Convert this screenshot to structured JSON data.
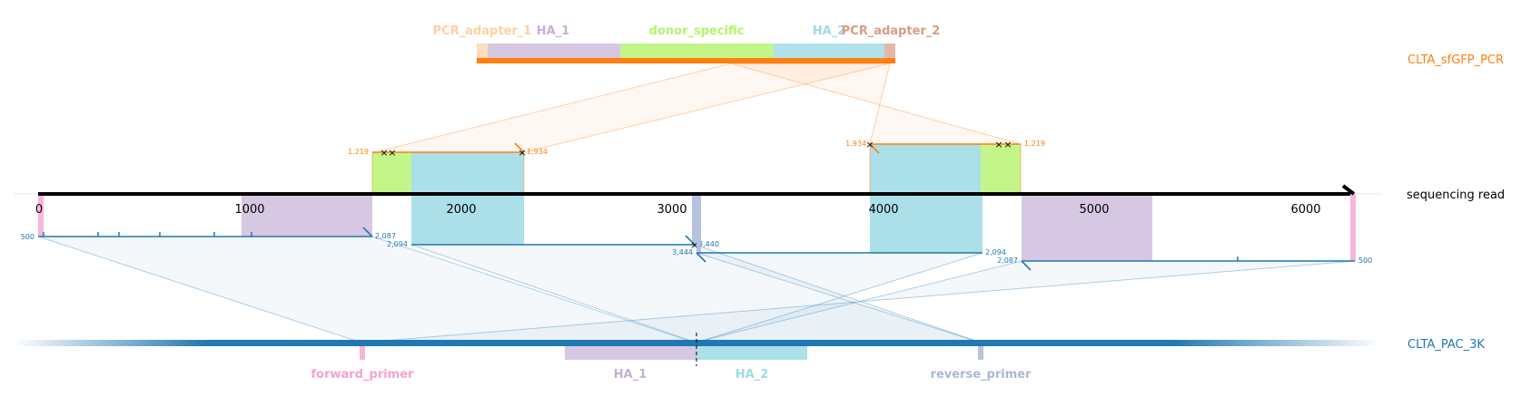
{
  "targets": {
    "top": {
      "name": "CLTA_sfGFP_PCR",
      "color": "#ff7f0e",
      "features": [
        {
          "name": "PCR_adapter_1",
          "color": "#fdd0a2"
        },
        {
          "name": "HA_1",
          "color": "#c5b0d5"
        },
        {
          "name": "donor_specific",
          "color": "#b5f36c"
        },
        {
          "name": "HA_2",
          "color": "#9edae5"
        },
        {
          "name": "PCR_adapter_2",
          "color": "#d89a84"
        }
      ]
    },
    "read": {
      "name": "sequencing read",
      "ticks": [
        "0",
        "1000",
        "2000",
        "3000",
        "4000",
        "5000",
        "6000"
      ]
    },
    "bottom": {
      "name": "CLTA_PAC_3K",
      "color": "#1f77b4",
      "features": [
        {
          "name": "forward_primer",
          "color": "#f7a1cf"
        },
        {
          "name": "HA_1",
          "color": "#c5b0d5"
        },
        {
          "name": "HA_2",
          "color": "#9edae5"
        },
        {
          "name": "reverse_primer",
          "color": "#a9b8d8"
        }
      ]
    }
  },
  "alignment_labels": {
    "top_left_start": "1,219",
    "top_left_end": "1,934",
    "top_right_start": "1,934",
    "top_right_end": "1,219",
    "b1_start": "500",
    "b1_end": "2,087",
    "b2_start": "2,094",
    "b2_end": "3,440",
    "b3_start": "3,444",
    "b3_end": "2,094",
    "b4_start": "2,087",
    "b4_end": "500"
  }
}
